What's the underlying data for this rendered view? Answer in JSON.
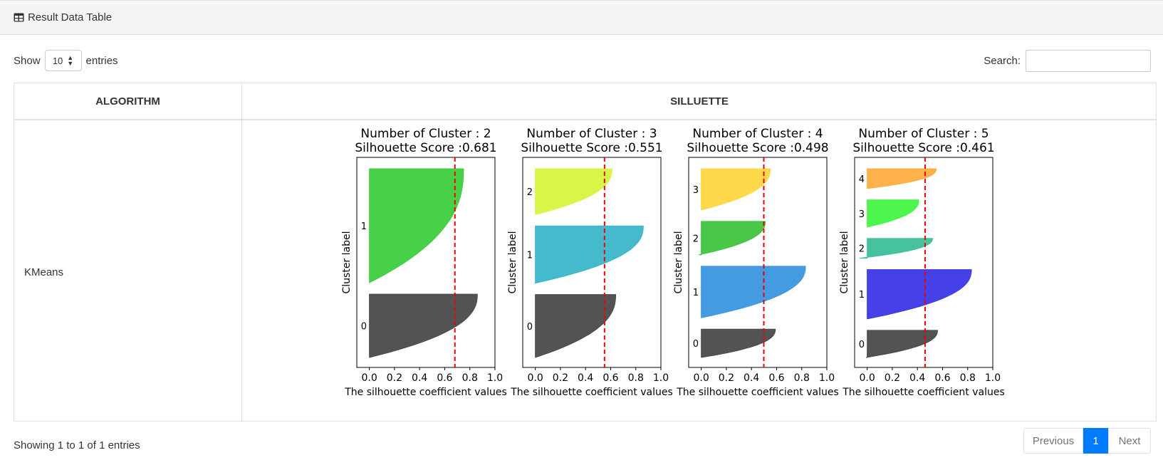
{
  "header": {
    "title": "Result Data Table",
    "icon": "table-icon"
  },
  "controls": {
    "show_label": "Show",
    "entries_value": "10",
    "entries_label": "entries",
    "search_label": "Search:",
    "search_value": ""
  },
  "table": {
    "columns": [
      "ALGORITHM",
      "SILLUETTE"
    ],
    "rows": [
      {
        "algorithm": "KMeans"
      }
    ]
  },
  "footer": {
    "info": "Showing 1 to 1 of 1 entries",
    "previous": "Previous",
    "page": "1",
    "next": "Next"
  },
  "chart_data": [
    {
      "type": "area",
      "title": "Number of Cluster : 2\nSilhouette Score :0.681",
      "xlabel": "The silhouette coefficient values",
      "ylabel": "Cluster label",
      "xlim": [
        -0.1,
        1.0
      ],
      "xticks": [
        "0.0",
        "0.2",
        "0.4",
        "0.6",
        "0.8",
        "1.0"
      ],
      "avg_score": 0.681,
      "clusters": [
        {
          "label": "0",
          "color": "#4a4a4a",
          "max": 0.86,
          "min": 0.0,
          "weight": 1.0
        },
        {
          "label": "1",
          "color": "#3ecf3e",
          "max": 0.75,
          "min": 0.0,
          "weight": 1.8
        }
      ]
    },
    {
      "type": "area",
      "title": "Number of Cluster : 3\nSilhouette Score :0.551",
      "xlabel": "The silhouette coefficient values",
      "ylabel": "Cluster label",
      "xlim": [
        -0.1,
        1.0
      ],
      "xticks": [
        "0.0",
        "0.2",
        "0.4",
        "0.6",
        "0.8",
        "1.0"
      ],
      "avg_score": 0.551,
      "clusters": [
        {
          "label": "0",
          "color": "#4a4a4a",
          "max": 0.64,
          "min": 0.0,
          "weight": 1.1
        },
        {
          "label": "1",
          "color": "#3ab6c9",
          "max": 0.86,
          "min": 0.0,
          "weight": 1.0
        },
        {
          "label": "2",
          "color": "#d7f53e",
          "max": 0.61,
          "min": 0.0,
          "weight": 0.8
        }
      ]
    },
    {
      "type": "area",
      "title": "Number of Cluster : 4\nSilhouette Score :0.498",
      "xlabel": "The silhouette coefficient values",
      "ylabel": "Cluster label",
      "xlim": [
        -0.1,
        1.0
      ],
      "xticks": [
        "0.0",
        "0.2",
        "0.4",
        "0.6",
        "0.8",
        "1.0"
      ],
      "avg_score": 0.498,
      "clusters": [
        {
          "label": "0",
          "color": "#4a4a4a",
          "max": 0.59,
          "min": 0.0,
          "weight": 0.55
        },
        {
          "label": "1",
          "color": "#3a96e0",
          "max": 0.83,
          "min": 0.0,
          "weight": 1.0
        },
        {
          "label": "2",
          "color": "#3ec43e",
          "max": 0.51,
          "min": -0.02,
          "weight": 0.65
        },
        {
          "label": "3",
          "color": "#ffd740",
          "max": 0.55,
          "min": 0.0,
          "weight": 0.8
        }
      ]
    },
    {
      "type": "area",
      "title": "Number of Cluster : 5\nSilhouette Score :0.461",
      "xlabel": "The silhouette coefficient values",
      "ylabel": "Cluster label",
      "xlim": [
        -0.1,
        1.0
      ],
      "xticks": [
        "0.0",
        "0.2",
        "0.4",
        "0.6",
        "0.8",
        "1.0"
      ],
      "avg_score": 0.461,
      "clusters": [
        {
          "label": "0",
          "color": "#4a4a4a",
          "max": 0.56,
          "min": -0.01,
          "weight": 0.55
        },
        {
          "label": "1",
          "color": "#3c37e6",
          "max": 0.83,
          "min": 0.0,
          "weight": 1.0
        },
        {
          "label": "2",
          "color": "#3cbf9a",
          "max": 0.52,
          "min": -0.06,
          "weight": 0.4
        },
        {
          "label": "3",
          "color": "#42f542",
          "max": 0.41,
          "min": 0.0,
          "weight": 0.55
        },
        {
          "label": "4",
          "color": "#ffad40",
          "max": 0.55,
          "min": 0.0,
          "weight": 0.4
        }
      ]
    }
  ]
}
